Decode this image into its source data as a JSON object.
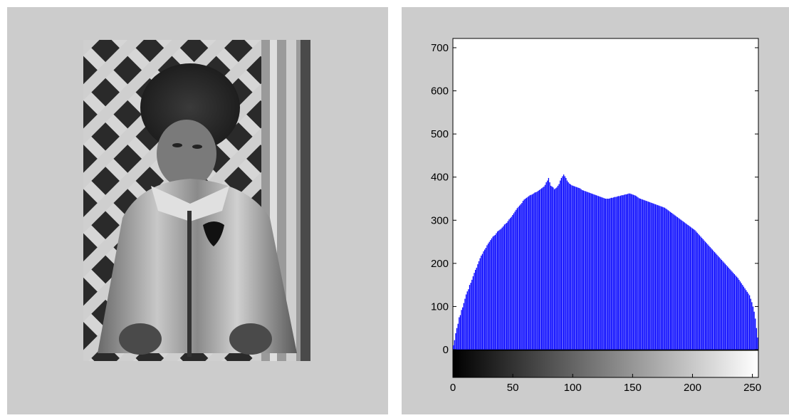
{
  "image_panel": {
    "icon": "grayscale-photo-of-child-in-coat"
  },
  "colors": {
    "panel_background": "#cccccc",
    "plot_background": "#ffffff",
    "bar_color": "#0000ff"
  },
  "chart_data": {
    "type": "bar",
    "title": "",
    "xlabel": "",
    "ylabel": "",
    "xlim": [
      0,
      255
    ],
    "ylim": [
      0,
      720
    ],
    "yticks": [
      0,
      100,
      200,
      300,
      400,
      500,
      600,
      700
    ],
    "xticks": [
      0,
      50,
      100,
      150,
      200,
      250
    ],
    "grid": false,
    "colorbar": "grayscale gradient black (0) to white (255) below x-axis",
    "bin_width": 1,
    "series": [
      {
        "values": [
          10,
          22,
          38,
          50,
          60,
          75,
          80,
          92,
          98,
          108,
          118,
          128,
          135,
          140,
          150,
          155,
          162,
          170,
          178,
          185,
          190,
          198,
          205,
          212,
          218,
          222,
          228,
          232,
          236,
          242,
          246,
          250,
          254,
          258,
          262,
          264,
          266,
          270,
          274,
          276,
          278,
          280,
          283,
          286,
          290,
          292,
          294,
          298,
          302,
          305,
          308,
          312,
          316,
          320,
          324,
          328,
          331,
          334,
          337,
          340,
          345,
          348,
          350,
          352,
          354,
          356,
          358,
          359,
          360,
          362,
          364,
          365,
          366,
          368,
          370,
          372,
          374,
          376,
          378,
          382,
          388,
          392,
          398,
          388,
          380,
          378,
          376,
          372,
          374,
          376,
          380,
          384,
          392,
          398,
          402,
          406,
          402,
          398,
          392,
          388,
          385,
          383,
          381,
          380,
          379,
          378,
          377,
          376,
          375,
          374,
          372,
          370,
          369,
          368,
          367,
          366,
          365,
          364,
          363,
          362,
          361,
          360,
          359,
          358,
          357,
          356,
          355,
          354,
          353,
          352,
          351,
          350,
          350,
          350,
          350,
          351,
          352,
          352,
          353,
          354,
          354,
          355,
          356,
          356,
          357,
          358,
          358,
          359,
          360,
          360,
          361,
          362,
          362,
          361,
          360,
          359,
          358,
          357,
          355,
          353,
          351,
          350,
          349,
          348,
          347,
          346,
          345,
          344,
          343,
          342,
          341,
          340,
          339,
          338,
          337,
          336,
          335,
          334,
          333,
          332,
          331,
          330,
          329,
          327,
          325,
          323,
          321,
          319,
          317,
          315,
          313,
          311,
          309,
          307,
          305,
          303,
          301,
          299,
          297,
          295,
          293,
          291,
          289,
          287,
          285,
          283,
          281,
          279,
          277,
          274,
          271,
          268,
          265,
          262,
          259,
          256,
          253,
          250,
          247,
          244,
          241,
          238,
          235,
          232,
          229,
          226,
          223,
          220,
          217,
          214,
          211,
          208,
          205,
          202,
          199,
          196,
          193,
          190,
          187,
          184,
          181,
          178,
          175,
          172,
          169,
          166,
          162,
          158,
          154,
          150,
          146,
          142,
          138,
          134,
          130,
          126,
          118,
          110,
          100,
          88,
          72,
          50,
          28
        ]
      }
    ]
  }
}
